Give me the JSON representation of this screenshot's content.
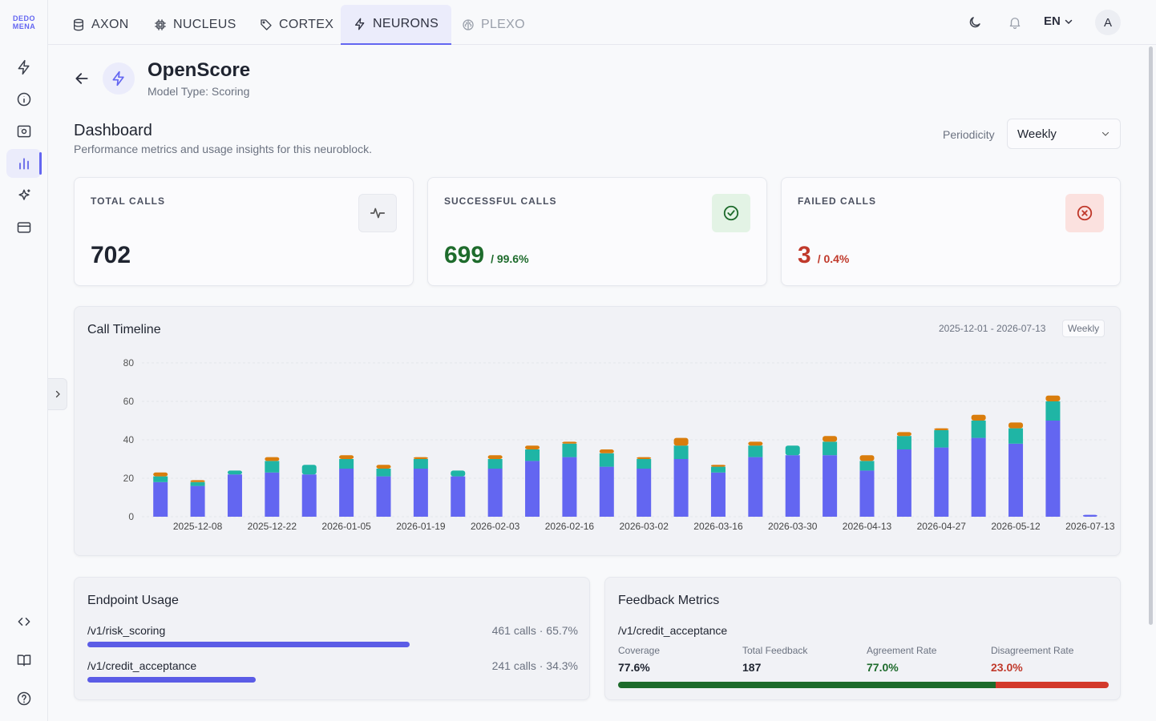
{
  "brand": {
    "logo_line1": "DEDO",
    "logo_line2": "MENA"
  },
  "nav": {
    "tabs": [
      {
        "label": "AXON",
        "icon": "database-icon",
        "state": "normal"
      },
      {
        "label": "NUCLEUS",
        "icon": "chip-icon",
        "state": "normal"
      },
      {
        "label": "CORTEX",
        "icon": "tag-icon",
        "state": "normal"
      },
      {
        "label": "NEURONS",
        "icon": "bolt-icon",
        "state": "active"
      },
      {
        "label": "PLEXO",
        "icon": "brain-icon",
        "state": "disabled"
      }
    ],
    "language": "EN",
    "avatar_initial": "A"
  },
  "sidebar": {
    "items": [
      "bolt-icon",
      "info-icon",
      "capture-icon",
      "bar-chart-icon",
      "sparkles-icon",
      "card-icon"
    ],
    "active_index": 3,
    "bottom": [
      "code-icon",
      "book-icon",
      "help-icon"
    ]
  },
  "header": {
    "model_name": "OpenScore",
    "model_type": "Model Type: Scoring"
  },
  "dashboard": {
    "title": "Dashboard",
    "subtitle": "Performance metrics and usage insights for this neuroblock.",
    "periodicity_label": "Periodicity",
    "periodicity_value": "Weekly"
  },
  "stats": {
    "total": {
      "label": "TOTAL CALLS",
      "value": "702"
    },
    "success": {
      "label": "SUCCESSFUL CALLS",
      "value": "699",
      "pct": "/ 99.6%"
    },
    "failed": {
      "label": "FAILED CALLS",
      "value": "3",
      "pct": "/ 0.4%"
    }
  },
  "colors": {
    "accent": "#6366f1",
    "success_series": "#1fb5a5",
    "orange_series": "#d97d0d",
    "success_text": "#1e6b2c",
    "failed_text": "#c0392b"
  },
  "timeline": {
    "title": "Call Timeline",
    "range": "2025-12-01 - 2026-07-13",
    "badge": "Weekly"
  },
  "chart_data": {
    "type": "bar",
    "stacked": true,
    "ylim": [
      0,
      80
    ],
    "yticks": [
      0,
      20,
      40,
      60,
      80
    ],
    "xtick_labels": [
      "2025-12-08",
      "2025-12-22",
      "2026-01-05",
      "2026-01-19",
      "2026-02-03",
      "2026-02-16",
      "2026-03-02",
      "2026-03-16",
      "2026-03-30",
      "2026-04-13",
      "2026-04-27",
      "2026-05-12",
      "2026-07-13"
    ],
    "series": [
      {
        "color": "#6366f1",
        "values": [
          18,
          16,
          22,
          23,
          22,
          25,
          21,
          25,
          21,
          25,
          29,
          31,
          26,
          25,
          30,
          23,
          31,
          32,
          32,
          24,
          35,
          36,
          41,
          38,
          50,
          1
        ]
      },
      {
        "color": "#1fb5a5",
        "values": [
          3,
          2,
          2,
          6,
          5,
          5,
          4,
          5,
          3,
          5,
          6,
          7,
          7,
          5,
          7,
          3,
          6,
          5,
          7,
          5,
          7,
          9,
          9,
          8,
          10,
          0
        ]
      },
      {
        "color": "#d97d0d",
        "values": [
          2,
          1,
          0,
          2,
          0,
          2,
          2,
          1,
          0,
          2,
          2,
          1,
          2,
          1,
          4,
          1,
          2,
          0,
          3,
          3,
          2,
          1,
          3,
          3,
          3,
          0
        ]
      }
    ]
  },
  "endpoint_usage": {
    "title": "Endpoint Usage",
    "items": [
      {
        "name": "/v1/risk_scoring",
        "stat": "461 calls · 65.7%",
        "fraction": 0.657
      },
      {
        "name": "/v1/credit_acceptance",
        "stat": "241 calls · 34.3%",
        "fraction": 0.343
      }
    ]
  },
  "feedback": {
    "title": "Feedback Metrics",
    "endpoint": "/v1/credit_acceptance",
    "metrics": [
      {
        "label": "Coverage",
        "value": "77.6%"
      },
      {
        "label": "Total Feedback",
        "value": "187"
      },
      {
        "label": "Agreement Rate",
        "value": "77.0%"
      },
      {
        "label": "Disagreement Rate",
        "value": "23.0%"
      }
    ],
    "agreement_fraction": 0.77,
    "agree_color": "#1e6b2c",
    "disagree_color": "#d33a2c"
  }
}
